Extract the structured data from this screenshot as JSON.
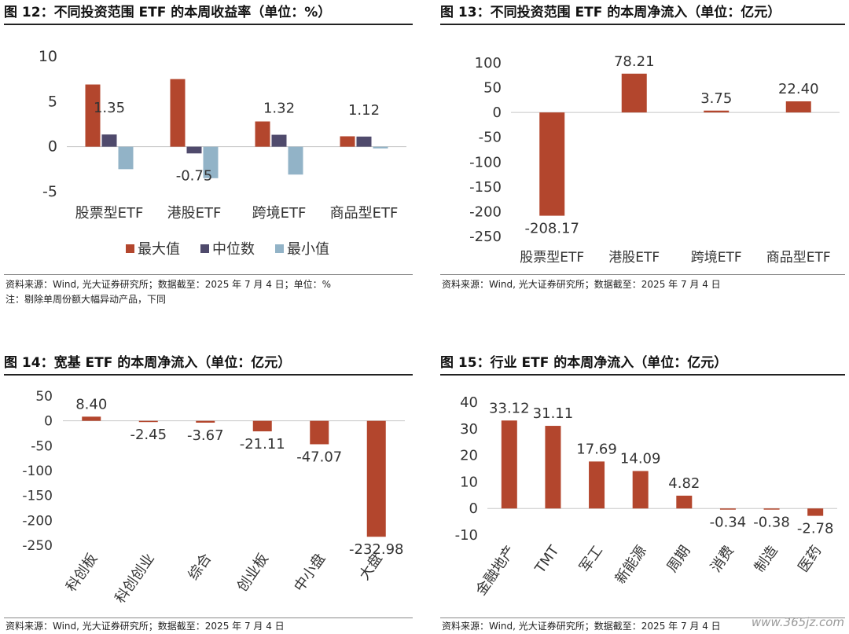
{
  "colors": {
    "max": "#b3462d",
    "median": "#4f4a6c",
    "min": "#92b3c7",
    "bar": "#b3462d"
  },
  "panels": [
    {
      "title": "图 12：不同投资范围 ETF 的本周收益率（单位：%）",
      "notes": [
        "资料来源：Wind, 光大证券研究所；数据截至：2025 年 7 月 4 日；单位：%",
        "注：剔除单周份额大幅异动产品，下同"
      ]
    },
    {
      "title": "图 13：不同投资范围 ETF 的本周净流入（单位：亿元）",
      "notes": [
        "资料来源：Wind, 光大证券研究所；数据截至：2025 年 7 月 4 日"
      ]
    },
    {
      "title": "图 14：宽基 ETF 的本周净流入（单位：亿元）",
      "notes": [
        "资料来源：Wind, 光大证券研究所；数据截至：2025 年 7 月 4 日"
      ]
    },
    {
      "title": "图 15：行业 ETF 的本周净流入（单位：亿元）",
      "notes": [
        "资料来源：Wind, 光大证券研究所；数据截至：2025 年 7 月 4 日"
      ]
    }
  ],
  "watermark": "www.365jz.com",
  "chart_data": [
    {
      "type": "bar",
      "categories": [
        "股票型ETF",
        "港股ETF",
        "跨境ETF",
        "商品型ETF"
      ],
      "series": [
        {
          "name": "最大值",
          "values": [
            6.9,
            7.5,
            2.8,
            1.15
          ]
        },
        {
          "name": "中位数",
          "values": [
            1.35,
            -0.75,
            1.32,
            1.12
          ]
        },
        {
          "name": "最小值",
          "values": [
            -2.5,
            -3.5,
            -3.1,
            -0.2
          ]
        }
      ],
      "data_labels": [
        "1.35",
        "-0.75",
        "1.32",
        "1.12"
      ],
      "yticks": [
        10,
        5,
        0,
        -5
      ],
      "ylim": [
        -5,
        10
      ],
      "legend": "bottom"
    },
    {
      "type": "bar",
      "categories": [
        "股票型ETF",
        "港股ETF",
        "跨境ETF",
        "商品型ETF"
      ],
      "values": [
        -208.17,
        78.21,
        3.75,
        22.4
      ],
      "data_labels": [
        "-208.17",
        "78.21",
        "3.75",
        "22.40"
      ],
      "yticks": [
        100,
        50,
        0,
        -50,
        -100,
        -150,
        -200,
        -250
      ],
      "ylim": [
        -250,
        100
      ]
    },
    {
      "type": "bar",
      "categories": [
        "科创板",
        "科创创业",
        "综合",
        "创业板",
        "中小盘",
        "大盘"
      ],
      "values": [
        8.4,
        -2.45,
        -3.67,
        -21.11,
        -47.07,
        -232.98
      ],
      "data_labels": [
        "8.40",
        "-2.45",
        "-3.67",
        "-21.11",
        "-47.07",
        "-232.98"
      ],
      "yticks": [
        50,
        0,
        -50,
        -100,
        -150,
        -200,
        -250
      ],
      "ylim": [
        -250,
        50
      ]
    },
    {
      "type": "bar",
      "categories": [
        "金融地产",
        "TMT",
        "军工",
        "新能源",
        "周期",
        "消费",
        "制造",
        "医药"
      ],
      "values": [
        33.12,
        31.11,
        17.69,
        14.09,
        4.82,
        -0.34,
        -0.38,
        -2.78
      ],
      "data_labels": [
        "33.12",
        "31.11",
        "17.69",
        "14.09",
        "4.82",
        "-0.34",
        "-0.38",
        "-2.78"
      ],
      "yticks": [
        40,
        30,
        20,
        10,
        0,
        -10
      ],
      "ylim": [
        -10,
        40
      ]
    }
  ]
}
